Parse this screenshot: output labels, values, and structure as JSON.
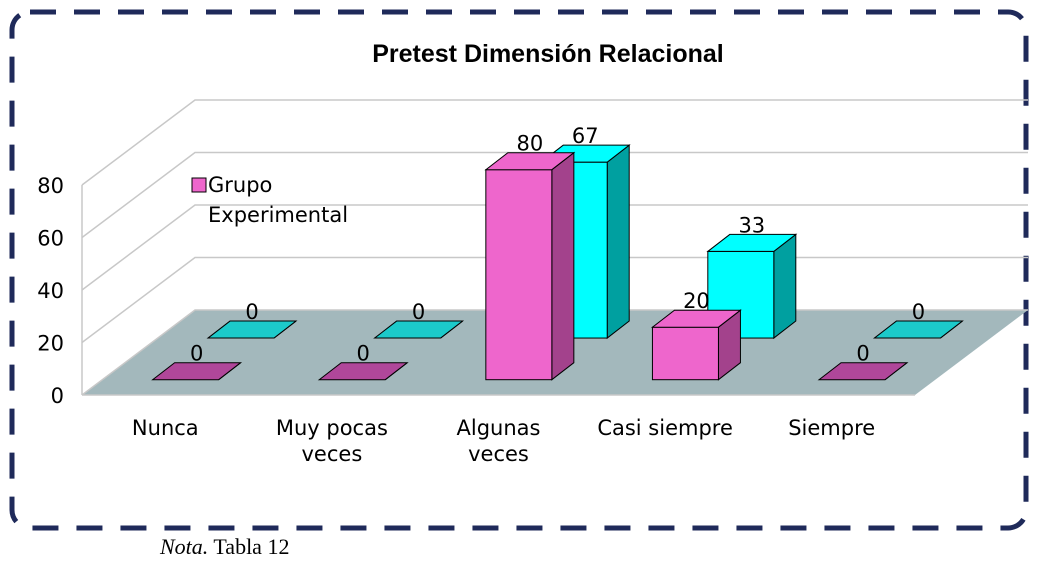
{
  "chart_data": {
    "type": "bar3d",
    "title": "Pretest Dimensión Relacional",
    "categories": [
      "Nunca",
      "Muy pocas veces",
      "Algunas veces",
      "Casi siempre",
      "Siempre"
    ],
    "series": [
      {
        "name": "Grupo Experimental",
        "color": "#ee66cc",
        "values": [
          0,
          0,
          80,
          20,
          0
        ]
      },
      {
        "color": "#00ffff",
        "values": [
          0,
          0,
          67,
          33,
          0
        ]
      }
    ],
    "ylim": [
      0,
      80
    ],
    "yticks": [
      0,
      20,
      40,
      60,
      80
    ],
    "grid": true
  },
  "note": {
    "label": "Nota.",
    "text": "Tabla 12"
  }
}
